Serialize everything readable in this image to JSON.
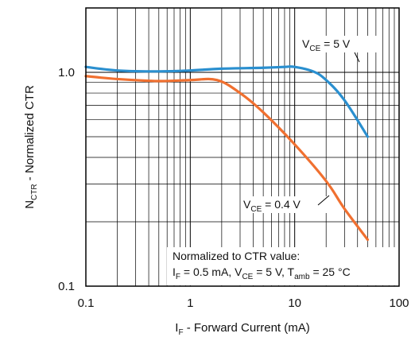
{
  "chart_data": {
    "type": "line",
    "x_scale": "log",
    "y_scale": "log",
    "xlim": [
      0.1,
      100
    ],
    "ylim": [
      0.1,
      2.0
    ],
    "x_major_ticks": [
      0.1,
      1,
      10,
      100
    ],
    "x_tick_labels": [
      "0.1",
      "1",
      "10",
      "100"
    ],
    "y_major_ticks": [
      0.1,
      1.0
    ],
    "y_tick_labels": [
      "0.1",
      "1.0"
    ],
    "xlabel": {
      "main": "I",
      "sub": "F",
      "rest": " - Forward Current (mA)"
    },
    "ylabel": {
      "main": "N",
      "sub": "CTR",
      "rest": " - Normalized CTR"
    },
    "grid": true,
    "series": [
      {
        "name": "VCE = 5 V",
        "label_parts": [
          "V",
          "CE",
          " = 5 V"
        ],
        "color": "#2a8fcf",
        "x": [
          0.1,
          0.2,
          0.5,
          1,
          2,
          5,
          8,
          10,
          15,
          20,
          30,
          50
        ],
        "y": [
          1.06,
          1.02,
          1.01,
          1.02,
          1.04,
          1.05,
          1.06,
          1.06,
          1.01,
          0.92,
          0.74,
          0.5
        ]
      },
      {
        "name": "VCE = 0.4 V",
        "label_parts": [
          "V",
          "CE",
          " = 0.4 V"
        ],
        "color": "#f07030",
        "x": [
          0.1,
          0.2,
          0.5,
          1,
          1.8,
          3,
          5,
          10,
          20,
          30,
          50
        ],
        "y": [
          0.96,
          0.93,
          0.91,
          0.92,
          0.92,
          0.8,
          0.65,
          0.46,
          0.31,
          0.23,
          0.165
        ]
      }
    ],
    "annotation": {
      "line1": "Normalized to CTR value:",
      "line2_parts": [
        "I",
        "F",
        " = 0.5 mA, V",
        "CE",
        " = 5 V, T",
        "amb",
        " = 25 °C"
      ]
    }
  }
}
